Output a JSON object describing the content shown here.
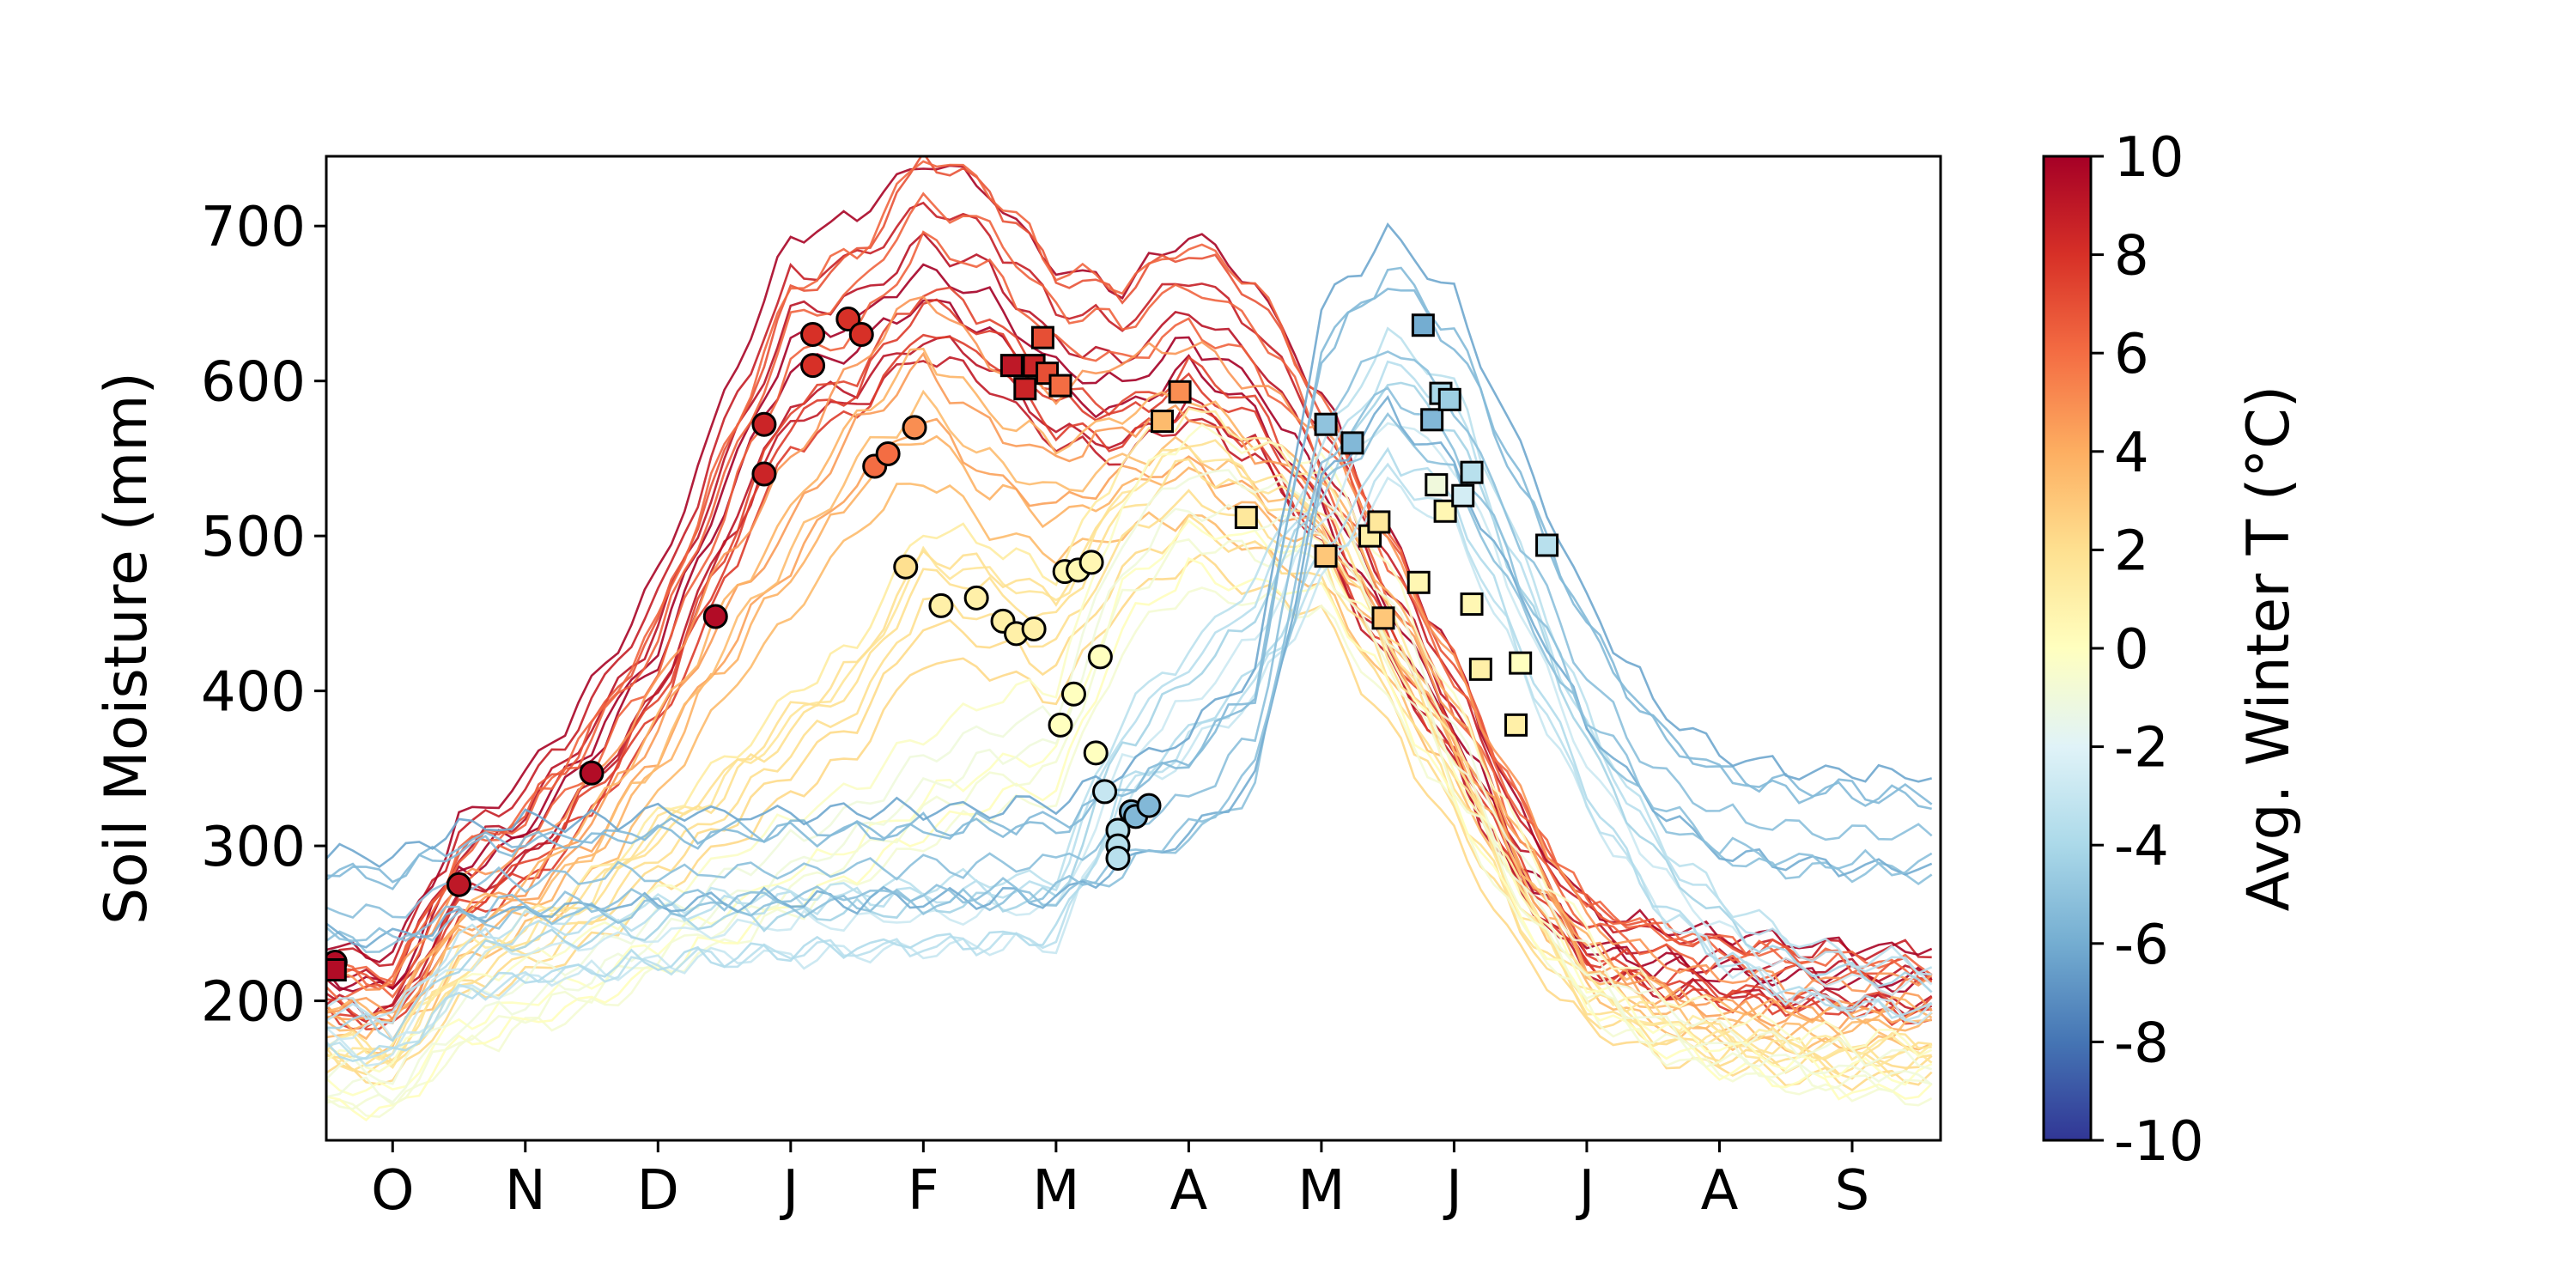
{
  "chart_data": {
    "type": "line",
    "xlabel": "",
    "ylabel": "Soil Moisture (mm)",
    "x_ticks": [
      "O",
      "N",
      "D",
      "J",
      "F",
      "M",
      "A",
      "M",
      "J",
      "J",
      "A",
      "S"
    ],
    "x_tick_days": [
      15,
      45,
      75,
      105,
      135,
      165,
      195,
      225,
      255,
      285,
      315,
      345
    ],
    "xlim_days": [
      0,
      365
    ],
    "ylim": [
      110,
      745
    ],
    "y_ticks": [
      200,
      300,
      400,
      500,
      600,
      700
    ],
    "colorbar": {
      "label": "Avg. Winter T (°C)",
      "range": [
        -10,
        10
      ],
      "ticks": [
        "10",
        "8",
        "6",
        "4",
        "2",
        "0",
        "-2",
        "-4",
        "-6",
        "-8",
        "-10"
      ],
      "colormap": [
        "#313695",
        "#4575b4",
        "#74add1",
        "#abd9e9",
        "#e0f3f8",
        "#ffffbf",
        "#fee090",
        "#fdae61",
        "#f46d43",
        "#d73027",
        "#a50026"
      ]
    },
    "series_templates": [
      {
        "temp": 9.5,
        "base_x": [
          0,
          15,
          30,
          45,
          60,
          75,
          90,
          105,
          120,
          135,
          150,
          165,
          180,
          195,
          210,
          225,
          240,
          255,
          270,
          285,
          300,
          315,
          330,
          345,
          365
        ],
        "base_y": [
          220,
          215,
          295,
          320,
          375,
          440,
          545,
          640,
          650,
          685,
          665,
          620,
          610,
          640,
          610,
          545,
          465,
          390,
          300,
          245,
          232,
          228,
          224,
          222,
          220
        ]
      },
      {
        "temp": 7.0,
        "base_x": [
          0,
          15,
          30,
          45,
          60,
          75,
          90,
          105,
          120,
          135,
          150,
          165,
          180,
          195,
          210,
          225,
          240,
          255,
          270,
          285,
          300,
          315,
          330,
          345,
          365
        ],
        "base_y": [
          210,
          205,
          280,
          305,
          355,
          420,
          520,
          620,
          640,
          700,
          680,
          630,
          620,
          645,
          620,
          550,
          470,
          395,
          310,
          250,
          235,
          225,
          220,
          215,
          210
        ]
      },
      {
        "temp": 4.0,
        "base_x": [
          0,
          15,
          30,
          45,
          60,
          75,
          90,
          105,
          120,
          135,
          150,
          165,
          180,
          195,
          210,
          225,
          240,
          255,
          270,
          285,
          300,
          315,
          330,
          345,
          365
        ],
        "base_y": [
          195,
          190,
          250,
          270,
          310,
          370,
          440,
          500,
          560,
          600,
          560,
          540,
          560,
          570,
          545,
          520,
          450,
          380,
          300,
          230,
          205,
          195,
          190,
          190,
          195
        ]
      },
      {
        "temp": 1.5,
        "base_x": [
          0,
          15,
          30,
          45,
          60,
          75,
          90,
          105,
          120,
          135,
          150,
          165,
          180,
          195,
          210,
          225,
          240,
          255,
          270,
          285,
          300,
          315,
          330,
          345,
          365
        ],
        "base_y": [
          165,
          160,
          215,
          235,
          260,
          300,
          330,
          370,
          400,
          470,
          460,
          440,
          510,
          540,
          520,
          500,
          420,
          340,
          255,
          200,
          180,
          170,
          165,
          160,
          165
        ]
      },
      {
        "temp": -0.5,
        "base_x": [
          0,
          15,
          30,
          45,
          60,
          75,
          90,
          105,
          120,
          135,
          150,
          165,
          180,
          195,
          210,
          225,
          240,
          255,
          270,
          285,
          300,
          315,
          330,
          345,
          365
        ],
        "base_y": [
          150,
          145,
          190,
          205,
          220,
          245,
          265,
          290,
          310,
          340,
          360,
          370,
          480,
          520,
          510,
          505,
          440,
          360,
          280,
          220,
          190,
          175,
          165,
          160,
          155
        ]
      },
      {
        "temp": -3.5,
        "base_x": [
          0,
          15,
          30,
          45,
          60,
          75,
          90,
          105,
          120,
          135,
          150,
          165,
          180,
          195,
          210,
          225,
          240,
          255,
          270,
          285,
          300,
          315,
          330,
          345,
          365
        ],
        "base_y": [
          185,
          180,
          225,
          235,
          240,
          245,
          250,
          252,
          255,
          258,
          260,
          262,
          360,
          400,
          440,
          520,
          590,
          560,
          460,
          360,
          290,
          250,
          225,
          215,
          210
        ]
      },
      {
        "temp": -5.5,
        "base_x": [
          0,
          15,
          30,
          45,
          60,
          75,
          90,
          105,
          120,
          135,
          150,
          165,
          180,
          195,
          210,
          225,
          240,
          255,
          270,
          285,
          300,
          315,
          330,
          345,
          365
        ],
        "base_y": [
          270,
          265,
          285,
          288,
          290,
          292,
          293,
          294,
          295,
          296,
          297,
          298,
          320,
          340,
          380,
          590,
          640,
          600,
          510,
          420,
          360,
          330,
          320,
          318,
          315
        ]
      }
    ],
    "markers": [
      {
        "shape": "circle",
        "points": [
          {
            "x": 2,
            "y": 225,
            "t": 9.5
          },
          {
            "x": 30,
            "y": 275,
            "t": 9.0
          },
          {
            "x": 60,
            "y": 347,
            "t": 9.5
          },
          {
            "x": 88,
            "y": 448,
            "t": 9.5
          },
          {
            "x": 99,
            "y": 540,
            "t": 8.5
          },
          {
            "x": 99,
            "y": 572,
            "t": 8.5
          },
          {
            "x": 110,
            "y": 610,
            "t": 8.0
          },
          {
            "x": 110,
            "y": 630,
            "t": 8.0
          },
          {
            "x": 118,
            "y": 640,
            "t": 8.0
          },
          {
            "x": 121,
            "y": 630,
            "t": 8.0
          },
          {
            "x": 124,
            "y": 545,
            "t": 6.0
          },
          {
            "x": 127,
            "y": 553,
            "t": 6.0
          },
          {
            "x": 133,
            "y": 570,
            "t": 5.0
          },
          {
            "x": 131,
            "y": 480,
            "t": 2.0
          },
          {
            "x": 139,
            "y": 455,
            "t": 1.0
          },
          {
            "x": 147,
            "y": 460,
            "t": 1.0
          },
          {
            "x": 153,
            "y": 445,
            "t": 1.0
          },
          {
            "x": 156,
            "y": 437,
            "t": 1.0
          },
          {
            "x": 160,
            "y": 440,
            "t": 1.0
          },
          {
            "x": 167,
            "y": 477,
            "t": 0.5
          },
          {
            "x": 170,
            "y": 478,
            "t": 0.5
          },
          {
            "x": 173,
            "y": 483,
            "t": 0.5
          },
          {
            "x": 166,
            "y": 378,
            "t": 0.0
          },
          {
            "x": 169,
            "y": 398,
            "t": 0.0
          },
          {
            "x": 174,
            "y": 360,
            "t": 0.0
          },
          {
            "x": 175,
            "y": 422,
            "t": 0.0
          },
          {
            "x": 176,
            "y": 335,
            "t": -3.0
          },
          {
            "x": 179,
            "y": 310,
            "t": -3.5
          },
          {
            "x": 179,
            "y": 300,
            "t": -3.5
          },
          {
            "x": 179,
            "y": 292,
            "t": -3.5
          },
          {
            "x": 182,
            "y": 322,
            "t": -5.5
          },
          {
            "x": 183,
            "y": 319,
            "t": -5.5
          },
          {
            "x": 186,
            "y": 326,
            "t": -5.5
          }
        ]
      },
      {
        "shape": "square",
        "points": [
          {
            "x": 2,
            "y": 220,
            "t": 9.5
          },
          {
            "x": 155,
            "y": 610,
            "t": 9.0
          },
          {
            "x": 158,
            "y": 595,
            "t": 8.5
          },
          {
            "x": 160,
            "y": 610,
            "t": 8.5
          },
          {
            "x": 162,
            "y": 628,
            "t": 7.0
          },
          {
            "x": 163,
            "y": 605,
            "t": 7.0
          },
          {
            "x": 166,
            "y": 597,
            "t": 6.0
          },
          {
            "x": 189,
            "y": 574,
            "t": 3.5
          },
          {
            "x": 193,
            "y": 593,
            "t": 5.0
          },
          {
            "x": 208,
            "y": 512,
            "t": 1.5
          },
          {
            "x": 226,
            "y": 572,
            "t": -5.0
          },
          {
            "x": 232,
            "y": 560,
            "t": -5.5
          },
          {
            "x": 226,
            "y": 487,
            "t": 3.0
          },
          {
            "x": 236,
            "y": 500,
            "t": 1.0
          },
          {
            "x": 238,
            "y": 509,
            "t": 1.5
          },
          {
            "x": 239,
            "y": 447,
            "t": 3.0
          },
          {
            "x": 247,
            "y": 470,
            "t": 0.5
          },
          {
            "x": 248,
            "y": 636,
            "t": -6.0
          },
          {
            "x": 250,
            "y": 575,
            "t": -5.5
          },
          {
            "x": 251,
            "y": 533,
            "t": -1.0
          },
          {
            "x": 252,
            "y": 592,
            "t": -4.0
          },
          {
            "x": 254,
            "y": 588,
            "t": -4.5
          },
          {
            "x": 253,
            "y": 516,
            "t": 0.5
          },
          {
            "x": 257,
            "y": 526,
            "t": -2.5
          },
          {
            "x": 259,
            "y": 541,
            "t": -3.5
          },
          {
            "x": 259,
            "y": 456,
            "t": 0.5
          },
          {
            "x": 261,
            "y": 414,
            "t": 1.0
          },
          {
            "x": 270,
            "y": 418,
            "t": 0.0
          },
          {
            "x": 269,
            "y": 378,
            "t": 1.0
          },
          {
            "x": 276,
            "y": 494,
            "t": -3.5
          }
        ]
      }
    ]
  }
}
